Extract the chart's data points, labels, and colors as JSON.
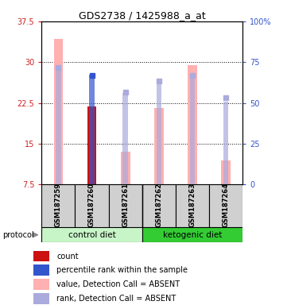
{
  "title": "GDS2738 / 1425988_a_at",
  "samples": [
    "GSM187259",
    "GSM187260",
    "GSM187261",
    "GSM187262",
    "GSM187263",
    "GSM187264"
  ],
  "ylim_left": [
    7.5,
    37.5
  ],
  "ylim_right": [
    0,
    100
  ],
  "yticks_left": [
    7.5,
    15.0,
    22.5,
    30.0,
    37.5
  ],
  "ytick_left_labels": [
    "7.5",
    "15",
    "22.5",
    "30",
    "37.5"
  ],
  "yticks_right": [
    0,
    25,
    50,
    75,
    100
  ],
  "ytick_right_labels": [
    "0",
    "25",
    "50",
    "75",
    "100%"
  ],
  "bar_values": [
    34.2,
    21.8,
    13.5,
    21.5,
    29.5,
    12.0
  ],
  "bar_colors": [
    "#ffb0b0",
    "#cc1111",
    "#ffb0b0",
    "#ffb0b0",
    "#ffb0b0",
    "#ffb0b0"
  ],
  "rank_values_pct": [
    73.0,
    67.5,
    56.0,
    64.0,
    68.0,
    51.0
  ],
  "rank_colors": [
    "#aaaadd",
    "#3355cc",
    "#aaaadd",
    "#aaaadd",
    "#aaaadd",
    "#aaaadd"
  ],
  "dot_values_left": [
    29.0,
    27.5,
    24.5,
    26.5,
    27.5,
    23.5
  ],
  "dot_colors": [
    "#aaaadd",
    "#3355cc",
    "#aaaadd",
    "#aaaadd",
    "#aaaadd",
    "#aaaadd"
  ],
  "ytick_left_color": "#cc2222",
  "ytick_right_color": "#3355cc",
  "control_color_light": "#c8f5c8",
  "control_color": "#66dd66",
  "ketogenic_color": "#33cc33",
  "sample_box_color": "#d0d0d0",
  "legend_items": [
    {
      "label": "count",
      "color": "#cc1111"
    },
    {
      "label": "percentile rank within the sample",
      "color": "#3355cc"
    },
    {
      "label": "value, Detection Call = ABSENT",
      "color": "#ffb0b0"
    },
    {
      "label": "rank, Detection Call = ABSENT",
      "color": "#aaaadd"
    }
  ]
}
